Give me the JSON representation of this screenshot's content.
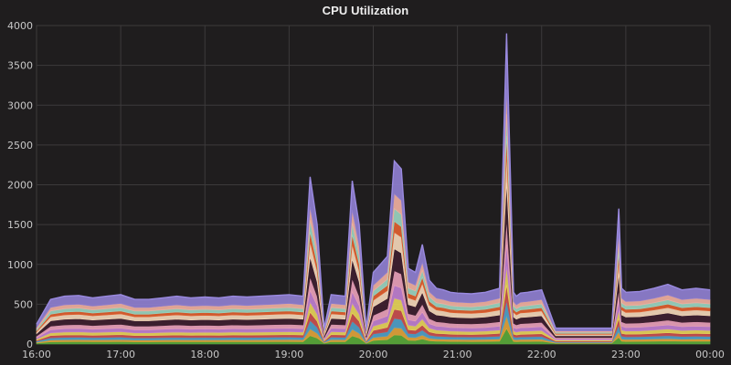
{
  "chart_data": {
    "type": "area",
    "stacked": true,
    "title": "CPU Utilization",
    "xlabel": "",
    "ylabel": "",
    "ylim": [
      0,
      4000
    ],
    "yticks": [
      "0",
      "500",
      "1000",
      "1500",
      "2000",
      "2500",
      "3000",
      "3500",
      "4000"
    ],
    "xlim": [
      "16:00",
      "00:00"
    ],
    "xticks": [
      "16:00",
      "17:00",
      "18:00",
      "19:00",
      "20:00",
      "21:00",
      "22:00",
      "23:00",
      "00:00"
    ],
    "grid": true,
    "legend": "none",
    "x": [
      "16:00",
      "16:10",
      "16:20",
      "16:30",
      "16:40",
      "16:50",
      "17:00",
      "17:10",
      "17:20",
      "17:30",
      "17:40",
      "17:50",
      "18:00",
      "18:10",
      "18:20",
      "18:30",
      "18:40",
      "18:50",
      "19:00",
      "19:10",
      "19:15",
      "19:20",
      "19:25",
      "19:30",
      "19:40",
      "19:45",
      "19:50",
      "19:55",
      "20:00",
      "20:05",
      "20:10",
      "20:15",
      "20:20",
      "20:25",
      "20:30",
      "20:35",
      "20:40",
      "20:45",
      "20:50",
      "20:55",
      "21:00",
      "21:10",
      "21:20",
      "21:30",
      "21:35",
      "21:40",
      "21:42",
      "21:45",
      "21:50",
      "22:00",
      "22:10",
      "22:15",
      "22:20",
      "22:30",
      "22:40",
      "22:50",
      "22:55",
      "22:57",
      "23:00",
      "23:10",
      "23:20",
      "23:30",
      "23:40",
      "23:50",
      "00:00"
    ],
    "total": [
      250,
      560,
      600,
      610,
      580,
      600,
      620,
      560,
      560,
      580,
      600,
      580,
      590,
      580,
      600,
      590,
      600,
      610,
      620,
      600,
      2100,
      1500,
      200,
      620,
      600,
      2050,
      1500,
      200,
      900,
      1000,
      1100,
      2300,
      2200,
      950,
      900,
      1250,
      800,
      700,
      680,
      650,
      640,
      630,
      650,
      700,
      3900,
      650,
      600,
      640,
      650,
      680,
      200,
      200,
      200,
      200,
      200,
      200,
      1700,
      700,
      650,
      660,
      700,
      750,
      680,
      700,
      680
    ],
    "series_colors": [
      "#59a83a",
      "#e0a23b",
      "#4fa0c8",
      "#c94f4f",
      "#e6d35a",
      "#bf7fd0",
      "#e8a0b8",
      "#3e1f30",
      "#f3d6b8",
      "#e06030",
      "#9ad4c0",
      "#f0b0a0",
      "#8f7fd0"
    ],
    "series_shares": [
      0.05,
      0.04,
      0.05,
      0.05,
      0.06,
      0.07,
      0.08,
      0.12,
      0.09,
      0.06,
      0.07,
      0.08,
      0.18
    ]
  }
}
